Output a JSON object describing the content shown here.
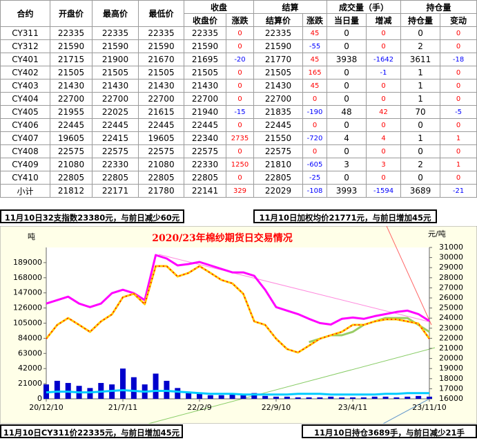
{
  "table": {
    "columns_top": [
      "合约",
      "开盘价",
      "最高价",
      "最低价",
      "收盘",
      "结算",
      "成交量（手）",
      "持仓量"
    ],
    "columns_sub": [
      "收盘价",
      "涨跌",
      "结算价",
      "涨跌",
      "当日量",
      "增减",
      "持仓量",
      "变动"
    ],
    "positive_color": "#ff0000",
    "negative_color": "#0000ff",
    "rows": [
      [
        "CY311",
        22335,
        22335,
        22335,
        22335,
        0,
        22335,
        45,
        0,
        0,
        0,
        0
      ],
      [
        "CY312",
        21590,
        21590,
        21590,
        21590,
        0,
        21590,
        -55,
        0,
        0,
        2,
        0
      ],
      [
        "CY401",
        21715,
        21900,
        21670,
        21695,
        -20,
        21770,
        45,
        3938,
        -1642,
        3611,
        -18
      ],
      [
        "CY402",
        21505,
        21505,
        21505,
        21505,
        0,
        21505,
        165,
        0,
        -1,
        1,
        0
      ],
      [
        "CY403",
        21430,
        21430,
        21430,
        21430,
        0,
        21430,
        45,
        0,
        0,
        1,
        0
      ],
      [
        "CY404",
        22700,
        22700,
        22700,
        22700,
        0,
        22700,
        0,
        0,
        0,
        1,
        0
      ],
      [
        "CY405",
        21955,
        22025,
        21615,
        21940,
        -15,
        21835,
        -190,
        48,
        42,
        70,
        -5
      ],
      [
        "CY406",
        22445,
        22445,
        22445,
        22445,
        0,
        22445,
        0,
        0,
        0,
        0,
        0
      ],
      [
        "CY407",
        19605,
        22415,
        19605,
        22340,
        2735,
        21550,
        -720,
        4,
        4,
        1,
        1
      ],
      [
        "CY408",
        22575,
        22575,
        22575,
        22575,
        0,
        22575,
        0,
        0,
        0,
        0,
        0
      ],
      [
        "CY409",
        21080,
        22330,
        21080,
        22330,
        1250,
        21810,
        -605,
        3,
        3,
        2,
        1
      ],
      [
        "CY410",
        22805,
        22805,
        22805,
        22805,
        0,
        22805,
        -25,
        0,
        0,
        0,
        0
      ],
      [
        "小计",
        21812,
        22171,
        21780,
        22141,
        329,
        22029,
        -108,
        3993,
        -1594,
        3689,
        -21
      ]
    ]
  },
  "notes": [
    "11月10日32支指数23380元，与前日减少60元",
    "11月10日加权均价21771元，与前日增加45元",
    "11月10日CY311价22335元，与前日增加45元",
    "11月10日持仓3689手，与前日减少21手"
  ],
  "chart_data": {
    "type": "combo",
    "title": "2020/23年棉纱期货日交易情况",
    "y_label": "吨",
    "y2_label": "元/吨",
    "categories": [
      "20/12/10",
      null,
      null,
      null,
      null,
      null,
      null,
      "21/7/11",
      null,
      null,
      null,
      null,
      null,
      null,
      "22/2/9",
      null,
      null,
      null,
      null,
      null,
      null,
      "22/9/10",
      null,
      null,
      null,
      null,
      null,
      null,
      "23/4/11",
      null,
      null,
      null,
      null,
      null,
      null,
      "23/11/10"
    ],
    "ylim": [
      0,
      210000
    ],
    "yticks": [
      0,
      21000,
      42000,
      63000,
      84000,
      105000,
      126000,
      147000,
      168000,
      189000
    ],
    "y2lim": [
      16000,
      31000
    ],
    "y2ticks": [
      16000,
      17000,
      18000,
      19000,
      20000,
      21000,
      22000,
      23000,
      24000,
      25000,
      26000,
      27000,
      28000,
      29000,
      30000,
      31000
    ],
    "series": [
      {
        "type": "bar",
        "color": "#0000cc",
        "values": [
          20000,
          25000,
          22000,
          18000,
          15000,
          22000,
          20000,
          42000,
          30000,
          20000,
          35000,
          25000,
          15000,
          10000,
          8000,
          5000,
          5000,
          6000,
          5000,
          8000,
          4000,
          3000,
          3000,
          2000,
          2000,
          2000,
          3000,
          2000,
          2000,
          2000,
          3000,
          3000,
          2000,
          3000,
          4000,
          3000
        ]
      },
      {
        "type": "line",
        "color": "#00ccff",
        "values": [
          9000,
          10000,
          10000,
          9000,
          9000,
          10000,
          11000,
          12000,
          11000,
          10000,
          11000,
          11000,
          10000,
          9000,
          8000,
          7000,
          7000,
          7000,
          6000,
          6000,
          6000,
          6000,
          6000,
          7000,
          7000,
          7000,
          6000,
          6000,
          6000,
          6000,
          6000,
          7000,
          7000,
          8000,
          8000,
          8000
        ]
      },
      {
        "type": "line",
        "color": "#ff00ff",
        "values": [
          132100,
          136900,
          141700,
          132100,
          127200,
          132100,
          146500,
          151300,
          146500,
          136900,
          199500,
          194700,
          185100,
          187000,
          189900,
          185100,
          180300,
          175400,
          175400,
          170600,
          151300,
          127200,
          122400,
          117600,
          110900,
          105100,
          103100,
          110900,
          112800,
          110900,
          114700,
          117600,
          120500,
          122400,
          117600,
          108000
        ]
      },
      {
        "type": "line",
        "axis": "y2",
        "color": "#99cc66",
        "values": [
          null,
          null,
          null,
          null,
          null,
          null,
          null,
          null,
          null,
          null,
          null,
          null,
          null,
          null,
          null,
          null,
          null,
          null,
          null,
          null,
          null,
          null,
          null,
          null,
          21620,
          21960,
          22300,
          22300,
          22640,
          23330,
          23670,
          24010,
          24010,
          24010,
          23330,
          22640
        ]
      },
      {
        "type": "line",
        "axis": "y2",
        "color": "#ffcc00",
        "dash_color": "#ff0000",
        "values": [
          21960,
          23330,
          24010,
          23330,
          22640,
          23670,
          24360,
          26070,
          26410,
          25380,
          29150,
          29150,
          28120,
          28470,
          29150,
          28470,
          27780,
          27440,
          26410,
          23670,
          23330,
          21960,
          20930,
          20590,
          21270,
          21960,
          22300,
          22640,
          23330,
          23330,
          23670,
          23880,
          23880,
          23670,
          23460,
          21960
        ]
      }
    ]
  }
}
